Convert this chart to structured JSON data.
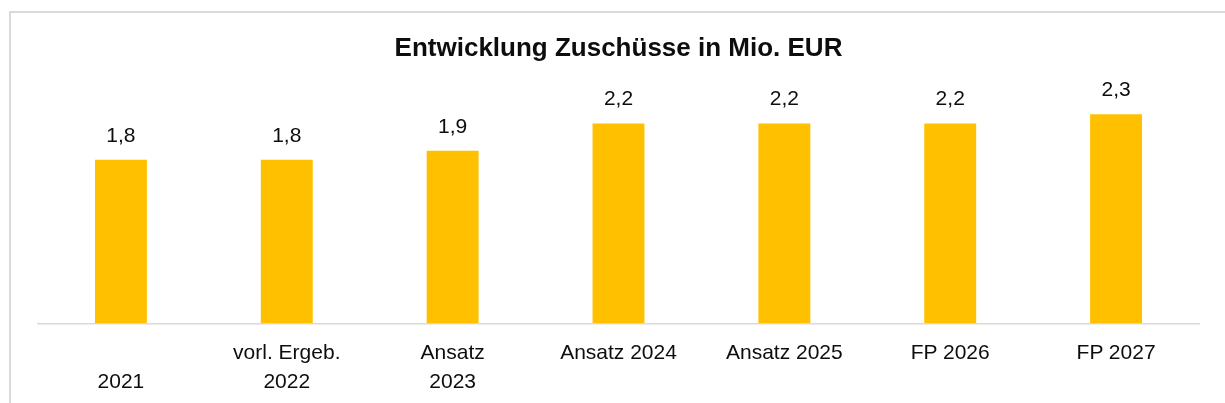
{
  "chart_data": {
    "type": "bar",
    "title": "Entwicklung Zuschüsse in Mio. EUR",
    "categories": [
      "\n2021",
      "vorl. Ergeb.\n2022",
      "Ansatz\n2023",
      "Ansatz 2024",
      "Ansatz 2025",
      "FP 2026",
      "FP 2027"
    ],
    "values": [
      1.8,
      1.8,
      1.9,
      2.2,
      2.2,
      2.2,
      2.3
    ],
    "value_labels": [
      "1,8",
      "1,8",
      "1,9",
      "2,2",
      "2,2",
      "2,2",
      "2,3"
    ],
    "color": "#ffc000",
    "tick_labels": "x"
  }
}
